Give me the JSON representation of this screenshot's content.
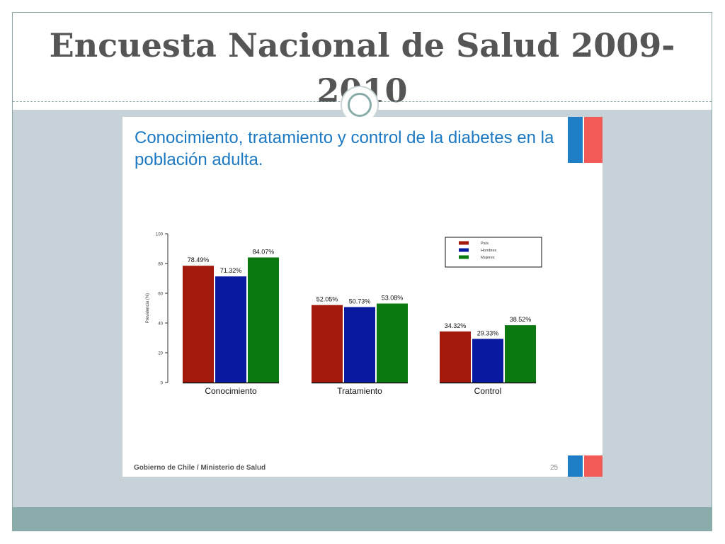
{
  "slide": {
    "title": "Encuesta Nacional de Salud 2009-2010",
    "image_heading": "Conocimiento, tratamiento y control de la diabetes en la población adulta.",
    "footer": "Gobierno de Chile / Ministerio de Salud",
    "page_number": "25"
  },
  "colors": {
    "pais": "#a31a0c",
    "hombres": "#0a1aa0",
    "mujeres": "#0a7a10",
    "heading_blue": "#1b78c2",
    "flag_blue": "#1f7dc6",
    "flag_red": "#f25a56"
  },
  "chart_data": {
    "type": "bar",
    "title": "",
    "xlabel": "",
    "ylabel": "Prevalencia (%)",
    "ylim": [
      0,
      100
    ],
    "yticks": [
      0,
      20,
      40,
      60,
      80,
      100
    ],
    "categories": [
      "Conocimiento",
      "Tratamiento",
      "Control"
    ],
    "series": [
      {
        "name": "País",
        "color": "#a31a0c",
        "values": [
          78.49,
          52.05,
          34.32
        ],
        "labels": [
          "78.49%",
          "52.05%",
          "34.32%"
        ]
      },
      {
        "name": "Hombres",
        "color": "#0a1aa0",
        "values": [
          71.32,
          50.73,
          29.33
        ],
        "labels": [
          "71.32%",
          "50.73%",
          "29.33%"
        ]
      },
      {
        "name": "Mujeres",
        "color": "#0a7a10",
        "values": [
          84.07,
          53.08,
          38.52
        ],
        "labels": [
          "84.07%",
          "53.08%",
          "38.52%"
        ]
      }
    ],
    "legend_position": "top-right",
    "grid": false
  }
}
